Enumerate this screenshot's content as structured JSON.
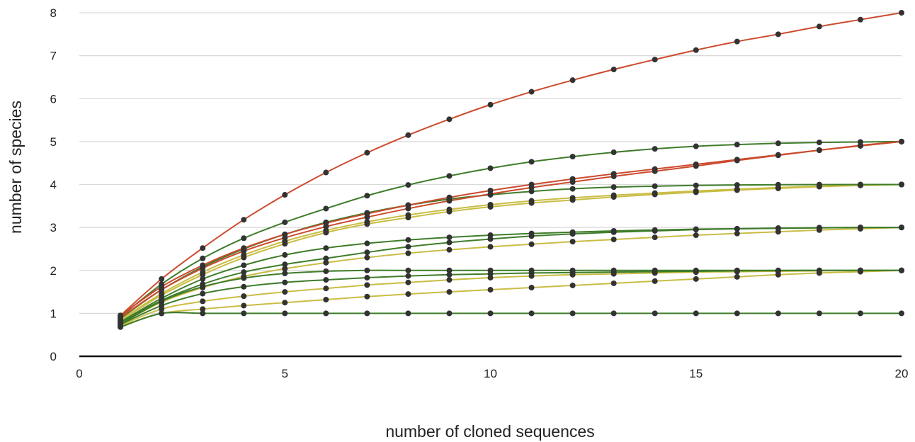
{
  "chart_data": {
    "type": "line",
    "xlabel": "number of cloned sequences",
    "ylabel": "number of species",
    "xlim": [
      0,
      20
    ],
    "ylim": [
      0,
      8
    ],
    "xticks": [
      0,
      5,
      10,
      15,
      20
    ],
    "yticks": [
      0,
      1,
      2,
      3,
      4,
      5,
      6,
      7,
      8
    ],
    "grid": "horizontal",
    "legend": "none",
    "colors": {
      "red": "#cc4b2e",
      "green": "#3f7d2a",
      "yellow": "#c9bd45",
      "point": "#333333"
    },
    "x": [
      1,
      2,
      3,
      4,
      5,
      6,
      7,
      8,
      9,
      10,
      11,
      12,
      13,
      14,
      15,
      16,
      17,
      18,
      19,
      20
    ],
    "series": [
      {
        "color": "red",
        "values": [
          0.95,
          1.8,
          2.52,
          3.18,
          3.76,
          4.28,
          4.74,
          5.15,
          5.52,
          5.86,
          6.16,
          6.43,
          6.68,
          6.91,
          7.13,
          7.33,
          7.5,
          7.68,
          7.84,
          8.0
        ]
      },
      {
        "color": "red",
        "values": [
          0.95,
          1.62,
          2.12,
          2.52,
          2.84,
          3.1,
          3.32,
          3.52,
          3.7,
          3.86,
          4.0,
          4.13,
          4.25,
          4.36,
          4.47,
          4.58,
          4.69,
          4.8,
          4.9,
          5.0
        ]
      },
      {
        "color": "red",
        "values": [
          0.9,
          1.55,
          2.05,
          2.45,
          2.76,
          3.02,
          3.24,
          3.44,
          3.62,
          3.78,
          3.93,
          4.06,
          4.19,
          4.31,
          4.43,
          4.56,
          4.68,
          4.8,
          4.91,
          5.0
        ]
      },
      {
        "color": "green",
        "values": [
          0.92,
          1.68,
          2.28,
          2.75,
          3.12,
          3.44,
          3.74,
          3.99,
          4.2,
          4.38,
          4.53,
          4.65,
          4.75,
          4.83,
          4.89,
          4.93,
          4.96,
          4.98,
          4.99,
          5.0
        ]
      },
      {
        "color": "green",
        "values": [
          0.88,
          1.55,
          2.08,
          2.5,
          2.84,
          3.12,
          3.34,
          3.52,
          3.66,
          3.76,
          3.84,
          3.9,
          3.94,
          3.96,
          3.98,
          3.99,
          3.995,
          3.998,
          4.0,
          4.0
        ]
      },
      {
        "color": "yellow",
        "values": [
          0.85,
          1.46,
          1.96,
          2.36,
          2.68,
          2.93,
          3.13,
          3.29,
          3.42,
          3.53,
          3.62,
          3.69,
          3.75,
          3.8,
          3.85,
          3.89,
          3.93,
          3.96,
          3.98,
          4.0
        ]
      },
      {
        "color": "yellow",
        "values": [
          0.83,
          1.42,
          1.9,
          2.3,
          2.62,
          2.88,
          3.08,
          3.23,
          3.37,
          3.48,
          3.57,
          3.64,
          3.71,
          3.77,
          3.82,
          3.87,
          3.91,
          3.95,
          3.98,
          4.0
        ]
      },
      {
        "color": "green",
        "values": [
          0.8,
          1.35,
          1.8,
          2.12,
          2.36,
          2.52,
          2.63,
          2.71,
          2.77,
          2.82,
          2.86,
          2.89,
          2.92,
          2.94,
          2.96,
          2.97,
          2.98,
          2.99,
          3.0,
          3.0
        ]
      },
      {
        "color": "green",
        "values": [
          0.78,
          1.3,
          1.68,
          1.96,
          2.14,
          2.28,
          2.42,
          2.55,
          2.65,
          2.73,
          2.8,
          2.85,
          2.89,
          2.92,
          2.95,
          2.97,
          2.985,
          2.995,
          3.0,
          3.0
        ]
      },
      {
        "color": "yellow",
        "values": [
          0.76,
          1.26,
          1.6,
          1.86,
          2.04,
          2.18,
          2.3,
          2.4,
          2.48,
          2.55,
          2.61,
          2.67,
          2.72,
          2.77,
          2.82,
          2.86,
          2.9,
          2.94,
          2.97,
          3.0
        ]
      },
      {
        "color": "green",
        "values": [
          0.75,
          1.28,
          1.62,
          1.82,
          1.93,
          1.98,
          2.0,
          2.0,
          2.0,
          2.0,
          2.0,
          2.0,
          2.0,
          2.0,
          2.0,
          2.0,
          2.0,
          2.0,
          2.0,
          2.0
        ]
      },
      {
        "color": "green",
        "values": [
          0.74,
          1.18,
          1.46,
          1.62,
          1.72,
          1.78,
          1.83,
          1.87,
          1.9,
          1.92,
          1.94,
          1.95,
          1.96,
          1.97,
          1.98,
          1.99,
          1.995,
          2.0,
          2.0,
          2.0
        ]
      },
      {
        "color": "yellow",
        "values": [
          0.72,
          1.1,
          1.28,
          1.4,
          1.5,
          1.58,
          1.66,
          1.72,
          1.78,
          1.83,
          1.87,
          1.9,
          1.92,
          1.94,
          1.96,
          1.97,
          1.98,
          1.99,
          2.0,
          2.0
        ]
      },
      {
        "color": "yellow",
        "values": [
          0.7,
          1.0,
          1.1,
          1.18,
          1.25,
          1.32,
          1.39,
          1.45,
          1.5,
          1.55,
          1.6,
          1.65,
          1.7,
          1.75,
          1.8,
          1.85,
          1.9,
          1.94,
          1.97,
          2.0
        ]
      },
      {
        "color": "green",
        "values": [
          0.68,
          1.0,
          1.0,
          1.0,
          1.0,
          1.0,
          1.0,
          1.0,
          1.0,
          1.0,
          1.0,
          1.0,
          1.0,
          1.0,
          1.0,
          1.0,
          1.0,
          1.0,
          1.0,
          1.0
        ]
      }
    ]
  }
}
